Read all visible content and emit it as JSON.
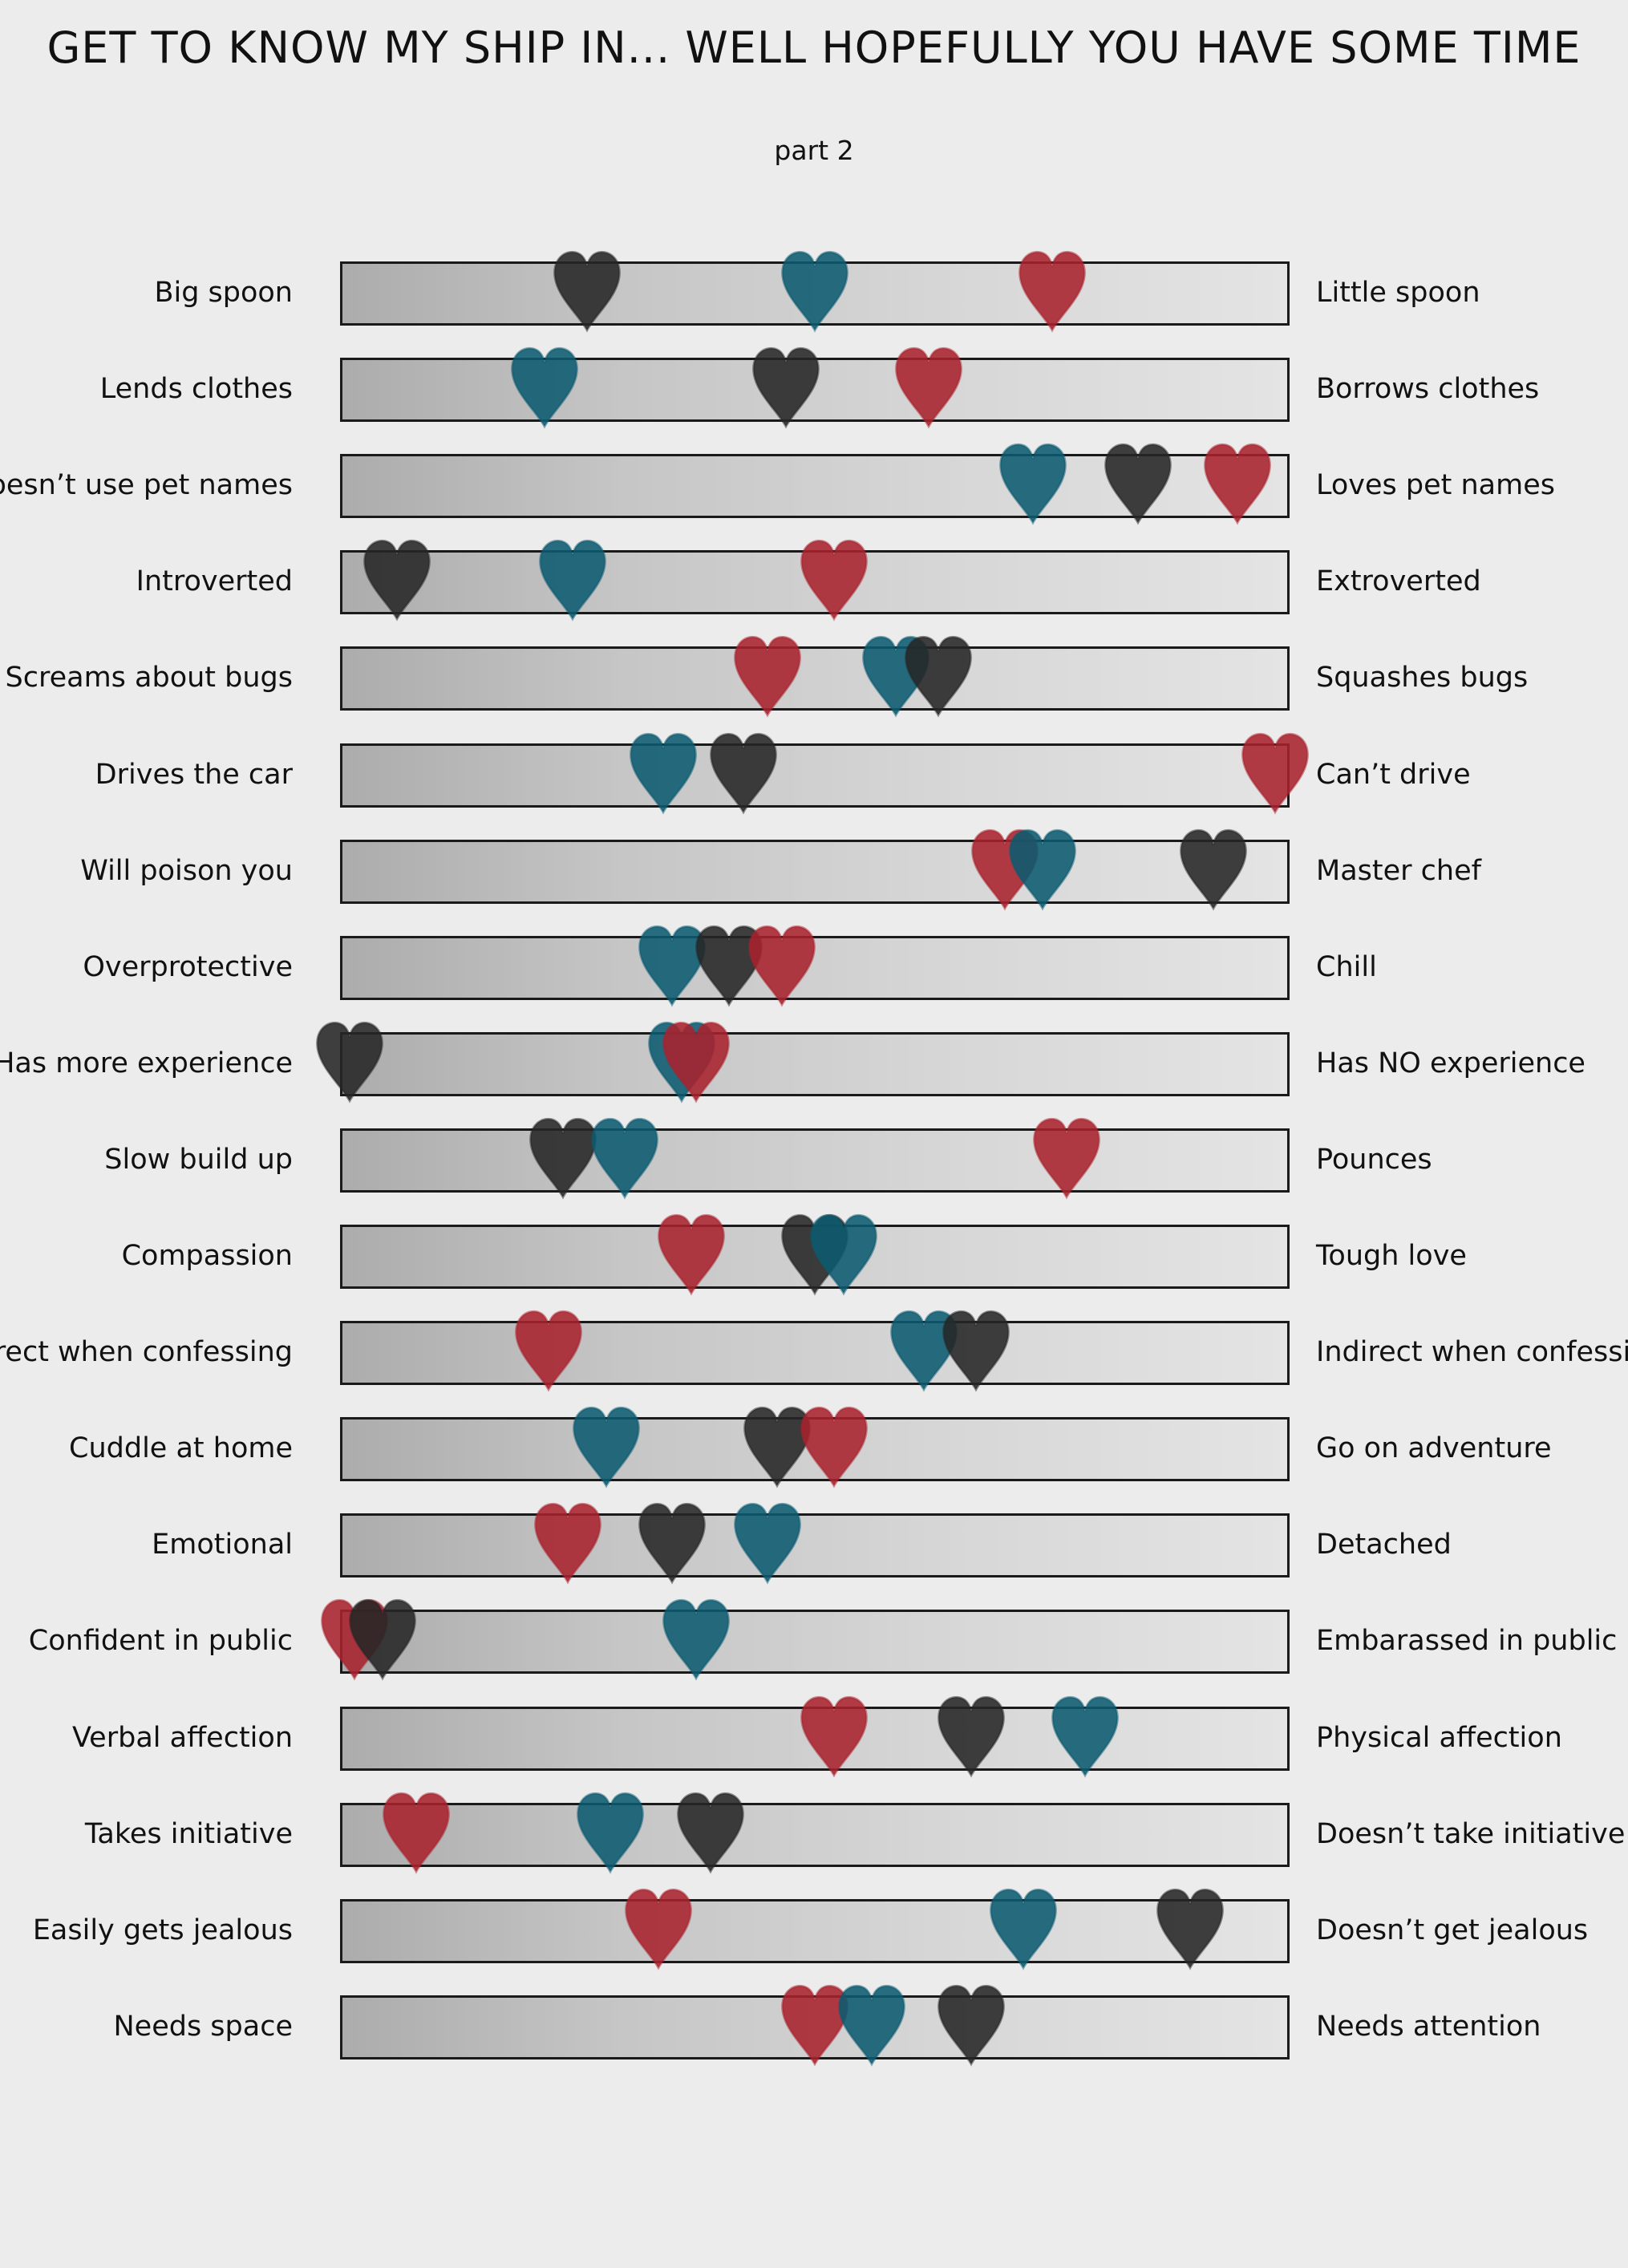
{
  "title": "GET TO KNOW MY SHIP IN... WELL HOPEFULLY YOU HAVE SOME TIME",
  "subtitle": "part 2",
  "colors": {
    "red": "#a8222e",
    "teal": "#0b5a70",
    "black": "#262626"
  },
  "rows": [
    {
      "left": "Big spoon",
      "right": "Little spoon",
      "hearts": {
        "black": 0.26,
        "teal": 0.5,
        "red": 0.75
      }
    },
    {
      "left": "Lends clothes",
      "right": "Borrows clothes",
      "hearts": {
        "teal": 0.215,
        "black": 0.47,
        "red": 0.62
      }
    },
    {
      "left": "Doesn’t use pet names",
      "right": "Loves pet names",
      "hearts": {
        "teal": 0.73,
        "black": 0.84,
        "red": 0.945
      }
    },
    {
      "left": "Introverted",
      "right": "Extroverted",
      "hearts": {
        "black": 0.06,
        "teal": 0.245,
        "red": 0.52
      }
    },
    {
      "left": "Screams about bugs",
      "right": "Squashes bugs",
      "hearts": {
        "red": 0.45,
        "teal": 0.585,
        "black": 0.63
      }
    },
    {
      "left": "Drives the car",
      "right": "Can’t drive",
      "hearts": {
        "teal": 0.34,
        "black": 0.425,
        "red": 0.985
      }
    },
    {
      "left": "Will poison you",
      "right": "Master chef",
      "hearts": {
        "red": 0.7,
        "teal": 0.74,
        "black": 0.92
      }
    },
    {
      "left": "Overprotective",
      "right": "Chill",
      "hearts": {
        "teal": 0.35,
        "black": 0.41,
        "red": 0.465
      }
    },
    {
      "left": "Has more experience",
      "right": "Has NO experience",
      "hearts": {
        "black": 0.01,
        "teal": 0.36,
        "red": 0.375
      }
    },
    {
      "left": "Slow build up",
      "right": "Pounces",
      "hearts": {
        "black": 0.235,
        "teal": 0.3,
        "red": 0.765
      }
    },
    {
      "left": "Compassion",
      "right": "Tough love",
      "hearts": {
        "red": 0.37,
        "black": 0.5,
        "teal": 0.53
      }
    },
    {
      "left": "Direct when confessing",
      "right": "Indirect when confessing",
      "hearts": {
        "red": 0.22,
        "teal": 0.615,
        "black": 0.67
      }
    },
    {
      "left": "Cuddle at home",
      "right": "Go on  adventure",
      "hearts": {
        "teal": 0.28,
        "black": 0.46,
        "red": 0.52
      }
    },
    {
      "left": "Emotional",
      "right": "Detached",
      "hearts": {
        "red": 0.24,
        "black": 0.35,
        "teal": 0.45
      }
    },
    {
      "left": "Confident in public",
      "right": "Embarassed in public",
      "hearts": {
        "red": 0.015,
        "black": 0.045,
        "teal": 0.375
      }
    },
    {
      "left": "Verbal affection",
      "right": "Physical affection",
      "hearts": {
        "red": 0.52,
        "black": 0.665,
        "teal": 0.785
      }
    },
    {
      "left": "Takes initiative",
      "right": "Doesn’t take initiative",
      "hearts": {
        "red": 0.08,
        "teal": 0.285,
        "black": 0.39
      }
    },
    {
      "left": "Easily gets jealous",
      "right": "Doesn’t get jealous",
      "hearts": {
        "red": 0.335,
        "teal": 0.72,
        "black": 0.895
      }
    },
    {
      "left": "Needs space",
      "right": "Needs attention",
      "hearts": {
        "red": 0.5,
        "teal": 0.56,
        "black": 0.665
      }
    }
  ]
}
